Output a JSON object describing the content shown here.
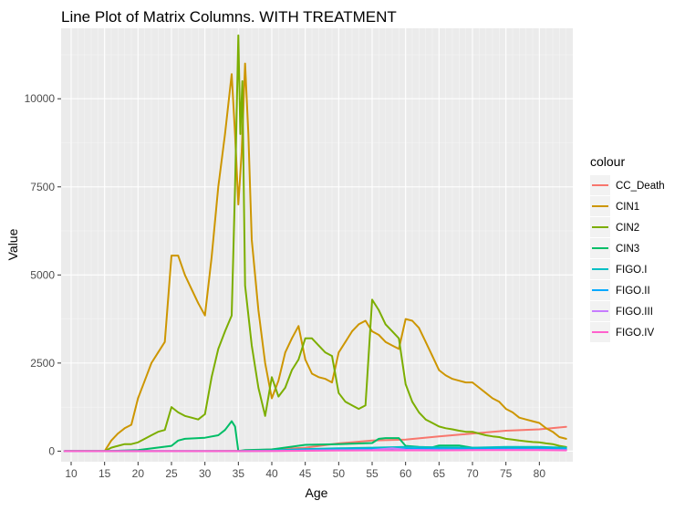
{
  "chart_data": {
    "type": "line",
    "title": "Line Plot of Matrix Columns. WITH TREATMENT",
    "xlabel": "Age",
    "ylabel": "Value",
    "xlim": [
      8.5,
      85.0
    ],
    "ylim": [
      -300,
      12000
    ],
    "x_major_ticks": [
      10,
      15,
      20,
      25,
      30,
      35,
      40,
      45,
      50,
      55,
      60,
      65,
      70,
      75,
      80
    ],
    "x_minor_ticks": [
      11,
      12,
      13,
      14,
      16,
      17,
      18,
      19,
      21,
      22,
      23,
      24,
      26,
      27,
      28,
      29,
      31,
      32,
      33,
      34,
      36,
      37,
      38,
      39,
      41,
      42,
      43,
      44,
      46,
      47,
      48,
      49,
      51,
      52,
      53,
      54,
      56,
      57,
      58,
      59,
      61,
      62,
      63,
      64,
      66,
      67,
      68,
      69,
      71,
      72,
      73,
      74,
      76,
      77,
      78,
      79,
      81,
      82,
      83,
      84
    ],
    "y_major_ticks": [
      0,
      2500,
      5000,
      7500,
      10000
    ],
    "y_minor_ticks": [
      1250,
      3750,
      6250,
      8750,
      11250
    ],
    "grid": true,
    "legend": {
      "title": "colour",
      "placement": "right"
    },
    "series": [
      {
        "name": "CC_Death",
        "color": "#F8766D",
        "points": [
          [
            9,
            0
          ],
          [
            15,
            0
          ],
          [
            20,
            0
          ],
          [
            25,
            0
          ],
          [
            30,
            0
          ],
          [
            35,
            10
          ],
          [
            40,
            50
          ],
          [
            45,
            100
          ],
          [
            50,
            220
          ],
          [
            55,
            300
          ],
          [
            60,
            330
          ],
          [
            65,
            420
          ],
          [
            70,
            500
          ],
          [
            75,
            580
          ],
          [
            80,
            620
          ],
          [
            84,
            690
          ]
        ]
      },
      {
        "name": "CIN1",
        "color": "#CD9600",
        "points": [
          [
            9,
            0
          ],
          [
            15,
            0
          ],
          [
            16,
            300
          ],
          [
            17,
            500
          ],
          [
            18,
            650
          ],
          [
            19,
            750
          ],
          [
            20,
            1500
          ],
          [
            21,
            2000
          ],
          [
            22,
            2500
          ],
          [
            23,
            2800
          ],
          [
            24,
            3100
          ],
          [
            25,
            5550
          ],
          [
            26,
            5550
          ],
          [
            27,
            5000
          ],
          [
            28,
            4600
          ],
          [
            29,
            4200
          ],
          [
            30,
            3850
          ],
          [
            31,
            5500
          ],
          [
            32,
            7500
          ],
          [
            33,
            9000
          ],
          [
            34,
            10700
          ],
          [
            34.5,
            9000
          ],
          [
            35,
            7000
          ],
          [
            35.5,
            8500
          ],
          [
            36,
            11000
          ],
          [
            36.5,
            9000
          ],
          [
            37,
            6000
          ],
          [
            38,
            4000
          ],
          [
            39,
            2500
          ],
          [
            40,
            1500
          ],
          [
            41,
            2000
          ],
          [
            42,
            2800
          ],
          [
            43,
            3200
          ],
          [
            44,
            3550
          ],
          [
            45,
            2600
          ],
          [
            46,
            2200
          ],
          [
            47,
            2100
          ],
          [
            48,
            2050
          ],
          [
            49,
            1950
          ],
          [
            50,
            2800
          ],
          [
            51,
            3100
          ],
          [
            52,
            3400
          ],
          [
            53,
            3600
          ],
          [
            54,
            3700
          ],
          [
            55,
            3400
          ],
          [
            56,
            3300
          ],
          [
            57,
            3100
          ],
          [
            58,
            3000
          ],
          [
            59,
            2900
          ],
          [
            60,
            3750
          ],
          [
            61,
            3700
          ],
          [
            62,
            3500
          ],
          [
            63,
            3100
          ],
          [
            64,
            2700
          ],
          [
            65,
            2300
          ],
          [
            66,
            2150
          ],
          [
            67,
            2050
          ],
          [
            68,
            2000
          ],
          [
            69,
            1950
          ],
          [
            70,
            1950
          ],
          [
            71,
            1800
          ],
          [
            72,
            1650
          ],
          [
            73,
            1500
          ],
          [
            74,
            1400
          ],
          [
            75,
            1200
          ],
          [
            76,
            1100
          ],
          [
            77,
            950
          ],
          [
            78,
            900
          ],
          [
            79,
            850
          ],
          [
            80,
            800
          ],
          [
            81,
            650
          ],
          [
            82,
            550
          ],
          [
            83,
            400
          ],
          [
            84,
            350
          ]
        ]
      },
      {
        "name": "CIN2",
        "color": "#7CAE00",
        "points": [
          [
            9,
            0
          ],
          [
            15,
            0
          ],
          [
            16,
            100
          ],
          [
            17,
            150
          ],
          [
            18,
            200
          ],
          [
            19,
            200
          ],
          [
            20,
            250
          ],
          [
            21,
            350
          ],
          [
            22,
            450
          ],
          [
            23,
            550
          ],
          [
            24,
            600
          ],
          [
            25,
            1250
          ],
          [
            26,
            1100
          ],
          [
            27,
            1000
          ],
          [
            28,
            950
          ],
          [
            29,
            900
          ],
          [
            30,
            1050
          ],
          [
            31,
            2100
          ],
          [
            32,
            2900
          ],
          [
            33,
            3400
          ],
          [
            34,
            3850
          ],
          [
            34.5,
            7500
          ],
          [
            35,
            11800
          ],
          [
            35.3,
            9000
          ],
          [
            35.6,
            10500
          ],
          [
            36,
            4700
          ],
          [
            37,
            3000
          ],
          [
            38,
            1800
          ],
          [
            39,
            1000
          ],
          [
            40,
            2100
          ],
          [
            41,
            1550
          ],
          [
            42,
            1800
          ],
          [
            43,
            2300
          ],
          [
            44,
            2600
          ],
          [
            45,
            3200
          ],
          [
            46,
            3200
          ],
          [
            47,
            3000
          ],
          [
            48,
            2800
          ],
          [
            49,
            2700
          ],
          [
            50,
            1650
          ],
          [
            51,
            1400
          ],
          [
            52,
            1300
          ],
          [
            53,
            1200
          ],
          [
            54,
            1300
          ],
          [
            55,
            4300
          ],
          [
            56,
            4000
          ],
          [
            57,
            3600
          ],
          [
            58,
            3400
          ],
          [
            59,
            3200
          ],
          [
            60,
            1900
          ],
          [
            61,
            1400
          ],
          [
            62,
            1100
          ],
          [
            63,
            900
          ],
          [
            64,
            800
          ],
          [
            65,
            700
          ],
          [
            66,
            650
          ],
          [
            67,
            620
          ],
          [
            68,
            580
          ],
          [
            69,
            550
          ],
          [
            70,
            550
          ],
          [
            71,
            500
          ],
          [
            72,
            450
          ],
          [
            73,
            420
          ],
          [
            74,
            400
          ],
          [
            75,
            350
          ],
          [
            76,
            330
          ],
          [
            77,
            300
          ],
          [
            78,
            280
          ],
          [
            79,
            260
          ],
          [
            80,
            250
          ],
          [
            81,
            220
          ],
          [
            82,
            200
          ],
          [
            83,
            150
          ],
          [
            84,
            120
          ]
        ]
      },
      {
        "name": "CIN3",
        "color": "#00BE67",
        "points": [
          [
            9,
            0
          ],
          [
            15,
            0
          ],
          [
            20,
            30
          ],
          [
            25,
            150
          ],
          [
            26,
            300
          ],
          [
            27,
            350
          ],
          [
            30,
            380
          ],
          [
            32,
            450
          ],
          [
            33,
            600
          ],
          [
            34,
            850
          ],
          [
            34.5,
            700
          ],
          [
            35,
            0
          ],
          [
            36,
            30
          ],
          [
            40,
            50
          ],
          [
            45,
            180
          ],
          [
            50,
            200
          ],
          [
            55,
            230
          ],
          [
            56,
            350
          ],
          [
            57,
            370
          ],
          [
            59,
            370
          ],
          [
            60,
            150
          ],
          [
            62,
            120
          ],
          [
            64,
            110
          ],
          [
            65,
            160
          ],
          [
            68,
            160
          ],
          [
            70,
            100
          ],
          [
            75,
            90
          ],
          [
            80,
            100
          ],
          [
            84,
            60
          ]
        ]
      },
      {
        "name": "FIGO.I",
        "color": "#00BFC4",
        "points": [
          [
            9,
            0
          ],
          [
            35,
            0
          ],
          [
            40,
            20
          ],
          [
            45,
            60
          ],
          [
            50,
            80
          ],
          [
            55,
            100
          ],
          [
            60,
            120
          ],
          [
            65,
            110
          ],
          [
            70,
            100
          ],
          [
            75,
            120
          ],
          [
            80,
            120
          ],
          [
            84,
            100
          ]
        ]
      },
      {
        "name": "FIGO.II",
        "color": "#00A9FF",
        "points": [
          [
            9,
            0
          ],
          [
            35,
            0
          ],
          [
            40,
            10
          ],
          [
            45,
            30
          ],
          [
            50,
            40
          ],
          [
            55,
            60
          ],
          [
            60,
            70
          ],
          [
            65,
            60
          ],
          [
            70,
            55
          ],
          [
            75,
            70
          ],
          [
            80,
            65
          ],
          [
            84,
            60
          ]
        ]
      },
      {
        "name": "FIGO.III",
        "color": "#C77CFF",
        "points": [
          [
            9,
            0
          ],
          [
            35,
            0
          ],
          [
            40,
            5
          ],
          [
            45,
            15
          ],
          [
            50,
            25
          ],
          [
            55,
            35
          ],
          [
            58,
            80
          ],
          [
            60,
            40
          ],
          [
            65,
            30
          ],
          [
            70,
            35
          ],
          [
            75,
            40
          ],
          [
            80,
            40
          ],
          [
            84,
            30
          ]
        ]
      },
      {
        "name": "FIGO.IV",
        "color": "#FF61CC",
        "points": [
          [
            9,
            0
          ],
          [
            35,
            0
          ],
          [
            40,
            5
          ],
          [
            45,
            10
          ],
          [
            50,
            15
          ],
          [
            55,
            20
          ],
          [
            60,
            20
          ],
          [
            65,
            20
          ],
          [
            70,
            25
          ],
          [
            75,
            25
          ],
          [
            80,
            25
          ],
          [
            84,
            20
          ]
        ]
      }
    ]
  }
}
